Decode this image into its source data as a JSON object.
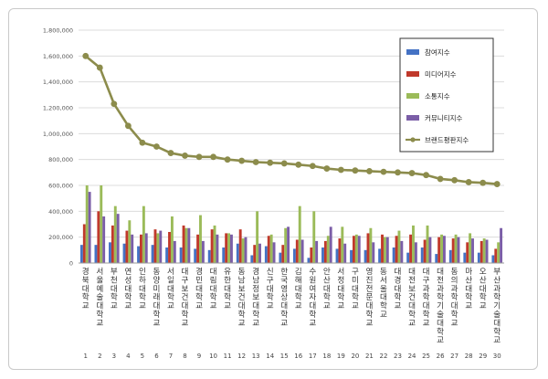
{
  "chart_data": {
    "type": "bar",
    "title": "",
    "xlabel": "",
    "ylabel": "",
    "ylim": [
      0,
      1800000
    ],
    "yticks": [
      "0",
      "200,000",
      "400,000",
      "600,000",
      "800,000",
      "1,000,000",
      "1,200,000",
      "1,400,000",
      "1,600,000",
      "1,800,000"
    ],
    "grid": true,
    "legend_position": "top-right",
    "categories": [
      "경북대학교",
      "서울예술대학교",
      "부천대학교",
      "연성대학교",
      "인하대학교",
      "동양미래대학교",
      "서일대학교",
      "대구보건대학교",
      "경민대학교",
      "대림대학교",
      "유한대학교",
      "동남보건대학교",
      "경남정보대학교",
      "신구대학교",
      "한국영상대학교",
      "김해대학교",
      "수원여자대학교",
      "안산대학교",
      "서정대학교",
      "구미대학교",
      "영진전문대학교",
      "동서울대학교",
      "대경대학교",
      "대전보건대학교",
      "대구과학대학교",
      "대전과학기술대학교",
      "동의과학대학교",
      "마산대학교",
      "오산대학교",
      "부산과학기술대학교"
    ],
    "ranks": [
      "1",
      "2",
      "3",
      "4",
      "5",
      "6",
      "7",
      "8",
      "9",
      "10",
      "11",
      "12",
      "13",
      "14",
      "15",
      "16",
      "17",
      "18",
      "19",
      "20",
      "21",
      "22",
      "23",
      "24",
      "25",
      "26",
      "27",
      "28",
      "29",
      "30"
    ],
    "series": [
      {
        "name": "참여지수",
        "type": "bar",
        "color": "#4472c4",
        "values": [
          140000,
          140000,
          160000,
          150000,
          130000,
          140000,
          120000,
          120000,
          110000,
          100000,
          120000,
          150000,
          60000,
          130000,
          80000,
          110000,
          40000,
          120000,
          110000,
          100000,
          100000,
          110000,
          120000,
          80000,
          120000,
          70000,
          100000,
          80000,
          80000,
          60000
        ]
      },
      {
        "name": "미디어지수",
        "type": "bar",
        "color": "#c0392b",
        "values": [
          300000,
          400000,
          290000,
          250000,
          220000,
          260000,
          240000,
          290000,
          220000,
          260000,
          230000,
          260000,
          140000,
          210000,
          140000,
          180000,
          120000,
          170000,
          190000,
          210000,
          230000,
          220000,
          210000,
          220000,
          180000,
          200000,
          190000,
          160000,
          170000,
          110000
        ]
      },
      {
        "name": "소통지수",
        "type": "bar",
        "color": "#9bbb59",
        "values": [
          600000,
          600000,
          440000,
          330000,
          440000,
          230000,
          360000,
          270000,
          370000,
          290000,
          230000,
          190000,
          400000,
          220000,
          270000,
          440000,
          400000,
          210000,
          280000,
          220000,
          270000,
          200000,
          250000,
          290000,
          290000,
          220000,
          220000,
          230000,
          190000,
          160000
        ]
      },
      {
        "name": "커뮤니티지수",
        "type": "bar",
        "color": "#7b5ea7",
        "values": [
          550000,
          360000,
          380000,
          220000,
          230000,
          250000,
          170000,
          270000,
          170000,
          220000,
          220000,
          200000,
          150000,
          160000,
          280000,
          180000,
          170000,
          280000,
          150000,
          210000,
          160000,
          200000,
          170000,
          160000,
          200000,
          210000,
          200000,
          190000,
          180000,
          270000
        ]
      },
      {
        "name": "브랜드평판지수",
        "type": "line",
        "color": "#8c8c4c",
        "values": [
          1600000,
          1510000,
          1230000,
          1060000,
          930000,
          900000,
          850000,
          830000,
          820000,
          820000,
          800000,
          790000,
          780000,
          775000,
          770000,
          760000,
          750000,
          730000,
          720000,
          715000,
          710000,
          705000,
          700000,
          695000,
          680000,
          650000,
          640000,
          625000,
          620000,
          610000
        ]
      }
    ]
  }
}
